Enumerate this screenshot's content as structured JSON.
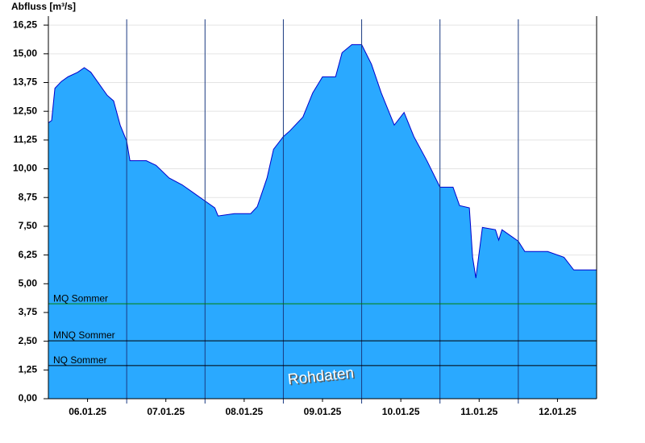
{
  "chart_data": {
    "type": "area",
    "title": "Abfluss [m³/s]",
    "x": [
      0,
      1,
      2,
      4,
      6,
      9,
      11,
      13,
      15,
      18,
      20,
      22,
      24,
      25,
      30,
      33,
      37,
      41,
      44,
      48,
      51,
      52,
      57,
      62,
      64,
      67,
      69,
      72,
      74,
      78,
      81,
      84,
      88,
      90,
      93,
      96,
      99,
      102,
      106,
      109,
      112,
      116,
      120,
      124,
      126,
      129,
      130,
      131,
      133,
      137,
      138,
      139,
      144,
      146,
      153,
      158,
      161,
      168
    ],
    "series": [
      {
        "name": "Abfluss",
        "color": "#2aa9ff",
        "line_color": "#0000cc",
        "values": [
          12.0,
          12.1,
          13.5,
          13.8,
          14.0,
          14.2,
          14.4,
          14.2,
          13.8,
          13.2,
          12.95,
          11.9,
          11.2,
          10.35,
          10.35,
          10.15,
          9.6,
          9.3,
          9.0,
          8.6,
          8.3,
          7.95,
          8.05,
          8.05,
          8.35,
          9.6,
          10.85,
          11.4,
          11.65,
          12.25,
          13.3,
          14.0,
          14.0,
          15.05,
          15.4,
          15.4,
          14.55,
          13.3,
          11.9,
          12.45,
          11.4,
          10.35,
          9.2,
          9.2,
          8.4,
          8.3,
          6.15,
          5.25,
          7.45,
          7.35,
          6.9,
          7.35,
          6.85,
          6.4,
          6.4,
          6.15,
          5.6,
          5.6
        ]
      }
    ],
    "xlim": [
      0,
      168
    ],
    "xticks": [
      {
        "value": 12,
        "label": "06.01.25"
      },
      {
        "value": 36,
        "label": "07.01.25"
      },
      {
        "value": 60,
        "label": "08.01.25"
      },
      {
        "value": 84,
        "label": "09.01.25"
      },
      {
        "value": 108,
        "label": "10.01.25"
      },
      {
        "value": 132,
        "label": "11.01.25"
      },
      {
        "value": 156,
        "label": "12.01.25"
      }
    ],
    "xgrid_at": [
      24,
      48,
      72,
      96,
      120,
      144
    ],
    "ylim": [
      0,
      16.5
    ],
    "yticks": [
      {
        "value": 0,
        "label": "0,00"
      },
      {
        "value": 1.25,
        "label": "1,25"
      },
      {
        "value": 2.5,
        "label": "2,50"
      },
      {
        "value": 3.75,
        "label": "3,75"
      },
      {
        "value": 5,
        "label": "5,00"
      },
      {
        "value": 6.25,
        "label": "6,25"
      },
      {
        "value": 7.5,
        "label": "7,50"
      },
      {
        "value": 8.75,
        "label": "8,75"
      },
      {
        "value": 10,
        "label": "10,00"
      },
      {
        "value": 11.25,
        "label": "11,25"
      },
      {
        "value": 12.5,
        "label": "12,50"
      },
      {
        "value": 13.75,
        "label": "13,75"
      },
      {
        "value": 15,
        "label": "15,00"
      },
      {
        "value": 16.25,
        "label": "16,25"
      }
    ],
    "grid": true,
    "reference_lines": [
      {
        "label": "MQ Sommer",
        "value": 4.13,
        "color": "#008000"
      },
      {
        "label": "MNQ Sommer",
        "value": 2.52,
        "color": "#000000"
      },
      {
        "label": "NQ Sommer",
        "value": 1.44,
        "color": "#000000"
      }
    ],
    "annotation": "Rohdaten"
  }
}
